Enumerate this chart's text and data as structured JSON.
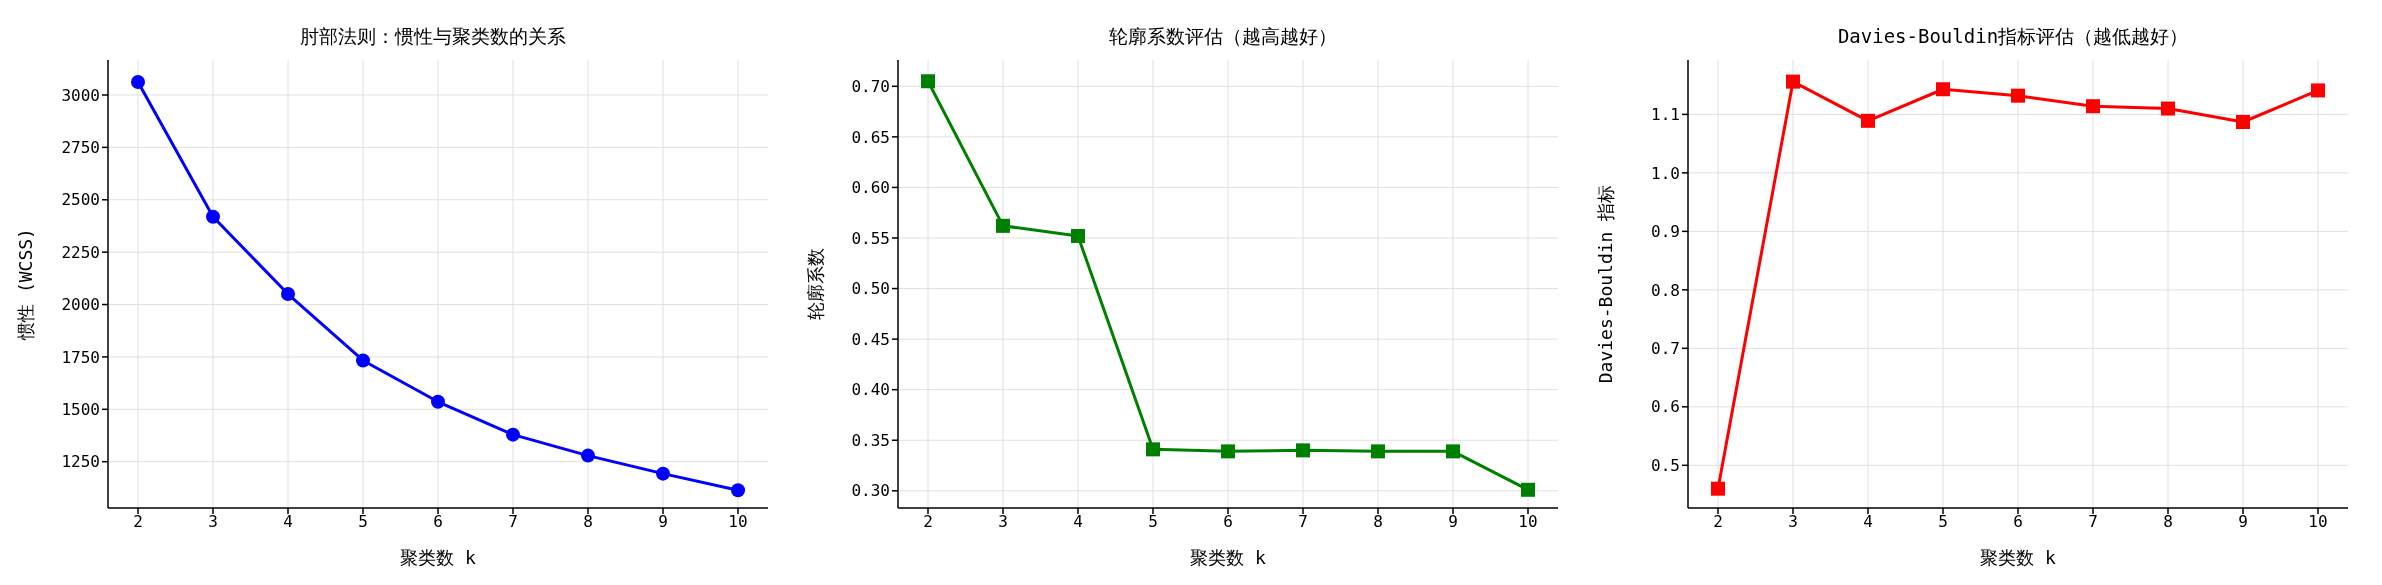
{
  "chart_data": [
    {
      "type": "line",
      "title": "肘部法则：惯性与聚类数的关系",
      "xlabel": "聚类数 k",
      "ylabel": "惯性 (WCSS)",
      "x": [
        2,
        3,
        4,
        5,
        6,
        7,
        8,
        9,
        10
      ],
      "xlim": [
        1.6,
        10.4
      ],
      "xticks": [
        2,
        3,
        4,
        5,
        6,
        7,
        8,
        9,
        10
      ],
      "ylim": [
        1029,
        3167
      ],
      "yticks": [
        1250,
        1500,
        1750,
        2000,
        2250,
        2500,
        2750,
        3000
      ],
      "grid": true,
      "marker": "circle",
      "line_style": "solid",
      "series": [
        {
          "color": "#0000ff",
          "values": [
            3062,
            2419,
            2050,
            1733,
            1536,
            1379,
            1279,
            1193,
            1114
          ]
        }
      ]
    },
    {
      "type": "line",
      "title": "轮廓系数评估（越高越好）",
      "xlabel": "聚类数 k",
      "ylabel": "轮廓系数",
      "x": [
        2,
        3,
        4,
        5,
        6,
        7,
        8,
        9,
        10
      ],
      "xlim": [
        1.6,
        10.4
      ],
      "xticks": [
        2,
        3,
        4,
        5,
        6,
        7,
        8,
        9,
        10
      ],
      "ylim": [
        0.283,
        0.726
      ],
      "yticks": [
        {
          "value": 0.3,
          "label": "0.30"
        },
        0.35,
        {
          "value": 0.4,
          "label": "0.40"
        },
        0.45,
        {
          "value": 0.5,
          "label": "0.50"
        },
        0.55,
        {
          "value": 0.6,
          "label": "0.60"
        },
        0.65,
        {
          "value": 0.7,
          "label": "0.70"
        }
      ],
      "grid": true,
      "marker": "square",
      "line_style": "solid",
      "series": [
        {
          "color": "#008000",
          "values": [
            0.705,
            0.562,
            0.552,
            0.341,
            0.339,
            0.34,
            0.339,
            0.339,
            0.301
          ]
        }
      ]
    },
    {
      "type": "line",
      "title": "Davies-Bouldin指标评估（越低越好）",
      "xlabel": "聚类数 k",
      "ylabel": "Davies-Bouldin 指标",
      "x": [
        2,
        3,
        4,
        5,
        6,
        7,
        8,
        9,
        10
      ],
      "xlim": [
        1.6,
        10.4
      ],
      "xticks": [
        2,
        3,
        4,
        5,
        6,
        7,
        8,
        9,
        10
      ],
      "ylim": [
        0.427,
        1.193
      ],
      "yticks": [
        0.5,
        0.6,
        0.7,
        0.8,
        0.9,
        {
          "value": 1.0,
          "label": "1.0"
        },
        1.1
      ],
      "grid": true,
      "marker": "square",
      "line_style": "solid",
      "series": [
        {
          "color": "#ff0000",
          "values": [
            0.46,
            1.156,
            1.089,
            1.143,
            1.132,
            1.114,
            1.11,
            1.087,
            1.141
          ]
        }
      ]
    }
  ]
}
